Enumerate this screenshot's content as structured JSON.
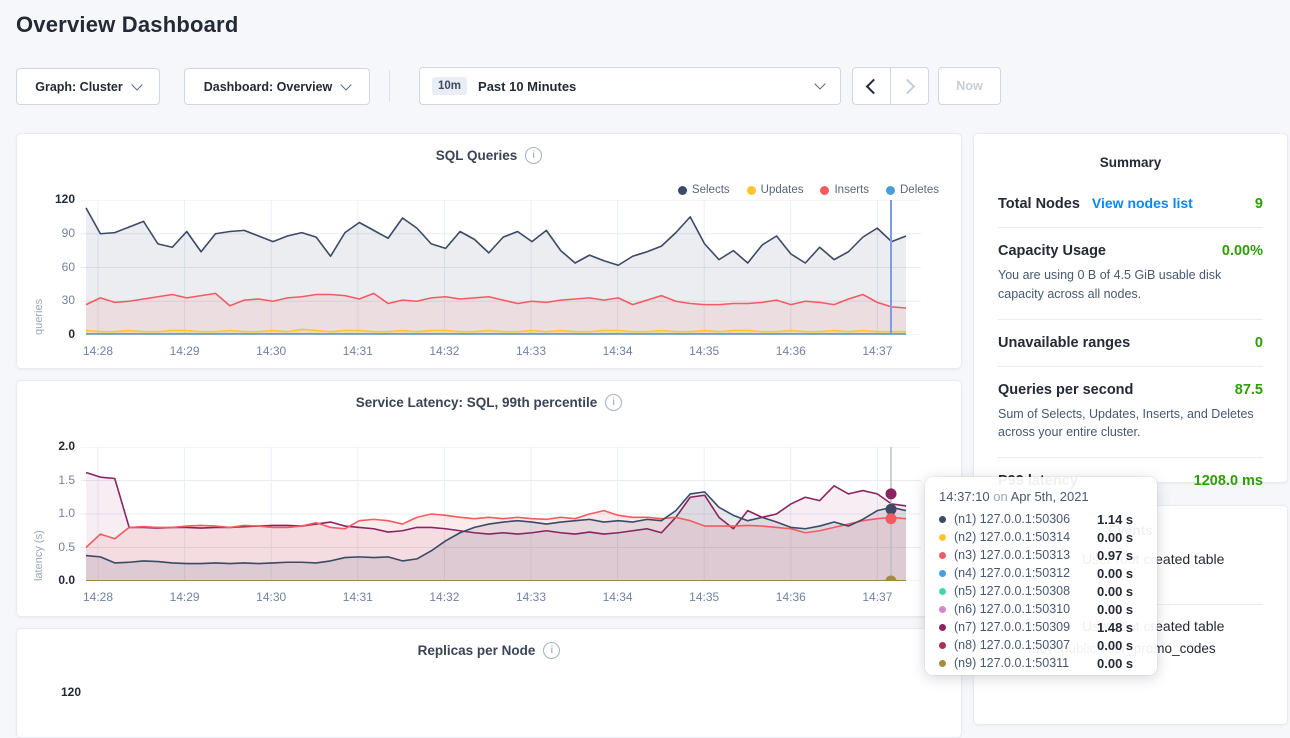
{
  "page": {
    "title": "Overview Dashboard"
  },
  "toolbar": {
    "graph_label": "Graph: Cluster",
    "dashboard_label": "Dashboard: Overview",
    "range_badge": "10m",
    "range_label": "Past 10 Minutes",
    "now_label": "Now"
  },
  "colors": {
    "accent_link": "#0788ff",
    "value_green": "#2f9e06",
    "sql_crosshair": "#7b9ce8",
    "latency_crosshair": "#b9bfca"
  },
  "charts": {
    "replicas": {
      "title": "Replicas per Node",
      "ytop_label": "120"
    }
  },
  "chart_data": [
    {
      "type": "area",
      "title": "SQL Queries",
      "ylabel": "queries",
      "ylim": [
        0,
        120
      ],
      "yticks": [
        "0",
        "30",
        "60",
        "90",
        "120"
      ],
      "xticks": [
        "14:28",
        "14:29",
        "14:30",
        "14:31",
        "14:32",
        "14:33",
        "14:34",
        "14:35",
        "14:36",
        "14:37"
      ],
      "grid": true,
      "legend_position": "top-right",
      "legend": [
        {
          "label": "Selects",
          "color": "#3b4a67"
        },
        {
          "label": "Updates",
          "color": "#fdc530"
        },
        {
          "label": "Inserts",
          "color": "#f25b62"
        },
        {
          "label": "Deletes",
          "color": "#479ed8"
        }
      ],
      "crosshair_time": "14:37:10",
      "series": [
        {
          "name": "Selects",
          "color": "#3b4a67",
          "fill": "rgba(59,74,103,0.10)",
          "values": [
            113,
            90,
            91,
            96,
            101,
            81,
            78,
            92,
            74,
            90,
            92,
            93,
            88,
            83,
            88,
            91,
            87,
            70,
            91,
            100,
            93,
            86,
            104,
            95,
            81,
            77,
            92,
            85,
            73,
            87,
            92,
            83,
            93,
            75,
            64,
            71,
            66,
            62,
            70,
            74,
            79,
            91,
            105,
            81,
            67,
            75,
            64,
            80,
            88,
            72,
            64,
            78,
            67,
            74,
            87,
            95,
            83,
            88
          ]
        },
        {
          "name": "Inserts",
          "color": "#f25b62",
          "fill": "rgba(242,91,98,0.10)",
          "values": [
            27,
            33,
            29,
            30,
            32,
            34,
            36,
            33,
            35,
            37,
            26,
            31,
            32,
            30,
            33,
            34,
            36,
            36,
            35,
            32,
            37,
            28,
            31,
            30,
            33,
            34,
            32,
            33,
            34,
            31,
            28,
            30,
            29,
            31,
            32,
            33,
            31,
            33,
            27,
            31,
            35,
            30,
            28,
            27,
            27,
            28,
            28,
            29,
            31,
            27,
            30,
            29,
            27,
            32,
            36,
            29,
            25,
            24
          ]
        },
        {
          "name": "Updates",
          "color": "#fdc530",
          "fill": "rgba(253,197,48,0.20)",
          "values": [
            4,
            3,
            3,
            4,
            3,
            3,
            4,
            4,
            3,
            3,
            4,
            3,
            3,
            4,
            3,
            5,
            4,
            3,
            4,
            4,
            3,
            3,
            4,
            3,
            4,
            4,
            3,
            3,
            4,
            3,
            3,
            4,
            3,
            4,
            3,
            3,
            4,
            4,
            3,
            3,
            4,
            3,
            3,
            4,
            3,
            4,
            4,
            3,
            3,
            4,
            3,
            3,
            4,
            3,
            4,
            3,
            3,
            3
          ]
        },
        {
          "name": "Deletes",
          "color": "#479ed8",
          "flat": 1
        }
      ]
    },
    {
      "type": "area",
      "title": "Service Latency: SQL, 99th percentile",
      "ylabel": "latency (s)",
      "ylim": [
        0,
        2.0
      ],
      "yticks": [
        "0.0",
        "0.5",
        "1.0",
        "1.5",
        "2.0"
      ],
      "xticks": [
        "14:28",
        "14:29",
        "14:30",
        "14:31",
        "14:32",
        "14:33",
        "14:34",
        "14:35",
        "14:36",
        "14:37"
      ],
      "grid": true,
      "crosshair_time": "14:37:10",
      "series": [
        {
          "name": "(n7) 127.0.0.1:50309",
          "color": "#8b2460",
          "fill": "rgba(139,36,96,0.08)",
          "values": [
            1.62,
            1.55,
            1.53,
            0.8,
            0.8,
            0.79,
            0.8,
            0.8,
            0.79,
            0.8,
            0.8,
            0.81,
            0.82,
            0.83,
            0.83,
            0.82,
            0.85,
            0.88,
            0.82,
            0.8,
            0.78,
            0.73,
            0.75,
            0.8,
            0.8,
            0.78,
            0.75,
            0.72,
            0.7,
            0.72,
            0.7,
            0.72,
            0.75,
            0.72,
            0.7,
            0.73,
            0.7,
            0.72,
            0.75,
            0.78,
            0.72,
            0.95,
            1.25,
            1.28,
            0.95,
            0.78,
            1.05,
            0.95,
            1.0,
            1.15,
            1.25,
            1.2,
            1.42,
            1.3,
            1.35,
            1.3,
            1.15,
            1.12
          ]
        },
        {
          "name": "(n3) 127.0.0.1:50313",
          "color": "#f25b62",
          "fill": "rgba(242,91,98,0.12)",
          "values": [
            0.5,
            0.7,
            0.63,
            0.8,
            0.81,
            0.8,
            0.8,
            0.82,
            0.83,
            0.82,
            0.8,
            0.83,
            0.82,
            0.8,
            0.8,
            0.82,
            0.87,
            0.8,
            0.78,
            0.9,
            0.92,
            0.9,
            0.85,
            0.95,
            1.0,
            0.98,
            0.95,
            0.93,
            0.95,
            0.93,
            0.95,
            0.93,
            0.92,
            0.95,
            0.93,
            1.0,
            1.05,
            0.98,
            0.95,
            0.95,
            0.93,
            0.95,
            0.9,
            0.82,
            0.82,
            0.82,
            0.83,
            0.82,
            0.8,
            0.78,
            0.72,
            0.75,
            0.8,
            0.85,
            0.9,
            0.93,
            0.95,
            0.93
          ]
        },
        {
          "name": "(n1) 127.0.0.1:50306",
          "color": "#3b4a67",
          "fill": "rgba(59,74,103,0.12)",
          "values": [
            0.38,
            0.36,
            0.27,
            0.28,
            0.3,
            0.29,
            0.27,
            0.26,
            0.26,
            0.27,
            0.26,
            0.27,
            0.26,
            0.27,
            0.28,
            0.28,
            0.27,
            0.3,
            0.35,
            0.36,
            0.35,
            0.36,
            0.3,
            0.33,
            0.45,
            0.6,
            0.72,
            0.8,
            0.85,
            0.88,
            0.9,
            0.88,
            0.85,
            0.88,
            0.9,
            0.92,
            0.88,
            0.9,
            0.88,
            0.92,
            0.9,
            1.05,
            1.3,
            1.33,
            1.1,
            0.98,
            0.9,
            0.95,
            0.88,
            0.8,
            0.78,
            0.82,
            0.88,
            0.82,
            0.92,
            1.05,
            1.1,
            1.05
          ]
        },
        {
          "name": "(n2) 127.0.0.1:50314",
          "color": "#fdc530",
          "flat": 0
        },
        {
          "name": "(n4) 127.0.0.1:50312",
          "color": "#479ed8",
          "flat": 0
        },
        {
          "name": "(n5) 127.0.0.1:50308",
          "color": "#46d8a3",
          "flat": 0
        },
        {
          "name": "(n6) 127.0.0.1:50310",
          "color": "#d887cc",
          "flat": 0
        },
        {
          "name": "(n8) 127.0.0.1:50307",
          "color": "#a8324e",
          "flat": 0
        },
        {
          "name": "(n9) 127.0.0.1:50311",
          "color": "#a38c3c",
          "flat": 0
        }
      ],
      "dots": [
        {
          "color": "#8b2460",
          "value": 1.3
        },
        {
          "color": "#3b4a67",
          "value": 1.07
        },
        {
          "color": "#f25b62",
          "value": 0.93
        },
        {
          "color": "#a38c3c",
          "value": 0.0
        }
      ]
    }
  ],
  "summary": {
    "title": "Summary",
    "items": [
      {
        "label": "Total Nodes",
        "link": "View nodes list",
        "value": "9",
        "desc": ""
      },
      {
        "label": "Capacity Usage",
        "value": "0.00%",
        "desc": "You are using 0 B of 4.5 GiB usable disk capacity across all nodes."
      },
      {
        "label": "Unavailable ranges",
        "value": "0",
        "desc": ""
      },
      {
        "label": "Queries per second",
        "value": "87.5",
        "desc": "Sum of Selects, Updates, Inserts, and Deletes across your entire cluster."
      },
      {
        "label": "P99 latency",
        "value": "1208.0 ms",
        "desc": ""
      }
    ]
  },
  "events": {
    "title": "Events",
    "rows": [
      {
        "line1": "User root created table",
        "line2": ""
      },
      {
        "line1": "User root created table",
        "line2": "movr.public.user_promo_codes"
      }
    ]
  },
  "tooltip": {
    "time": "14:37:10",
    "conj": "on",
    "date": "Apr 5th, 2021",
    "rows": [
      {
        "color": "#3b4a67",
        "label": "(n1) 127.0.0.1:50306",
        "value": "1.14 s"
      },
      {
        "color": "#fdc530",
        "label": "(n2) 127.0.0.1:50314",
        "value": "0.00 s"
      },
      {
        "color": "#f25b62",
        "label": "(n3) 127.0.0.1:50313",
        "value": "0.97 s"
      },
      {
        "color": "#479ed8",
        "label": "(n4) 127.0.0.1:50312",
        "value": "0.00 s"
      },
      {
        "color": "#46d8a3",
        "label": "(n5) 127.0.0.1:50308",
        "value": "0.00 s"
      },
      {
        "color": "#d887cc",
        "label": "(n6) 127.0.0.1:50310",
        "value": "0.00 s"
      },
      {
        "color": "#8b2460",
        "label": "(n7) 127.0.0.1:50309",
        "value": "1.48 s"
      },
      {
        "color": "#a8324e",
        "label": "(n8) 127.0.0.1:50307",
        "value": "0.00 s"
      },
      {
        "color": "#a38c3c",
        "label": "(n9) 127.0.0.1:50311",
        "value": "0.00 s"
      }
    ]
  }
}
